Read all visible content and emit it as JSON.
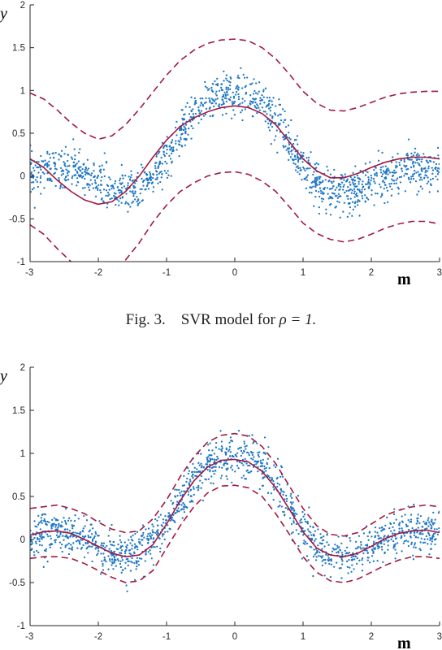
{
  "caption": {
    "prefix": "Fig. 3.",
    "text": "SVR model for",
    "math": "ρ = 1."
  },
  "colors": {
    "points": "#1f77c4",
    "model": "#a2193f",
    "axis": "#262626"
  },
  "chart_data": [
    {
      "type": "scatter",
      "ylabel": "y",
      "xlabel": "m",
      "xlim": [
        -3,
        3
      ],
      "ylim": [
        -1,
        2
      ],
      "xticks": [
        "-3",
        "-2",
        "-1",
        "0",
        "1",
        "2",
        "3"
      ],
      "yticks": [
        "-1",
        "-0.5",
        "0",
        "0.5",
        "1",
        "1.5",
        "2"
      ],
      "grid": false,
      "series": [
        {
          "kind": "points",
          "style": "dots",
          "x": [
            -3,
            -2.8,
            -2.6,
            -2.4,
            -2.2,
            -2,
            -1.8,
            -1.6,
            -1.4,
            -1.2,
            -1,
            -0.8,
            -0.6,
            -0.4,
            -0.2,
            0,
            0.2,
            0.4,
            0.6,
            0.8,
            1,
            1.2,
            1.4,
            1.6,
            1.8,
            2,
            2.2,
            2.4,
            2.6,
            2.8,
            3
          ],
          "y": [
            0.03,
            0.08,
            0.09,
            0.07,
            0.02,
            -0.07,
            -0.16,
            -0.2,
            -0.16,
            -0.02,
            0.2,
            0.46,
            0.7,
            0.87,
            0.95,
            0.97,
            0.95,
            0.85,
            0.65,
            0.4,
            0.12,
            -0.08,
            -0.18,
            -0.2,
            -0.16,
            -0.08,
            0,
            0.06,
            0.09,
            0.09,
            0.07
          ]
        },
        {
          "kind": "model",
          "style": "solid",
          "x": [
            -3,
            -2.8,
            -2.6,
            -2.4,
            -2.2,
            -2,
            -1.8,
            -1.6,
            -1.4,
            -1.2,
            -1,
            -0.8,
            -0.6,
            -0.4,
            -0.2,
            0,
            0.2,
            0.4,
            0.6,
            0.8,
            1,
            1.2,
            1.4,
            1.6,
            1.8,
            2,
            2.2,
            2.4,
            2.6,
            2.8,
            3
          ],
          "y": [
            0.2,
            0.1,
            -0.05,
            -0.18,
            -0.28,
            -0.33,
            -0.3,
            -0.18,
            0,
            0.22,
            0.42,
            0.58,
            0.68,
            0.75,
            0.8,
            0.82,
            0.8,
            0.73,
            0.6,
            0.4,
            0.2,
            0.06,
            -0.02,
            -0.02,
            0.03,
            0.1,
            0.16,
            0.2,
            0.22,
            0.22,
            0.2
          ]
        },
        {
          "kind": "upper-bound",
          "style": "dashed",
          "x": [
            -3,
            -2.8,
            -2.6,
            -2.4,
            -2.2,
            -2,
            -1.8,
            -1.6,
            -1.4,
            -1.2,
            -1,
            -0.8,
            -0.6,
            -0.4,
            -0.2,
            0,
            0.2,
            0.4,
            0.6,
            0.8,
            1,
            1.2,
            1.4,
            1.6,
            1.8,
            2,
            2.2,
            2.4,
            2.6,
            2.8,
            3
          ],
          "y": [
            0.97,
            0.9,
            0.77,
            0.62,
            0.5,
            0.43,
            0.47,
            0.6,
            0.78,
            0.98,
            1.18,
            1.35,
            1.47,
            1.55,
            1.59,
            1.6,
            1.58,
            1.5,
            1.37,
            1.19,
            0.99,
            0.85,
            0.77,
            0.76,
            0.8,
            0.86,
            0.92,
            0.96,
            0.98,
            0.99,
            0.99
          ]
        },
        {
          "kind": "lower-bound",
          "style": "dashed",
          "x": [
            -3,
            -2.8,
            -2.6,
            -2.4,
            -2.2,
            -2,
            -1.8,
            -1.6,
            -1.4,
            -1.2,
            -1,
            -0.8,
            -0.6,
            -0.4,
            -0.2,
            0,
            0.2,
            0.4,
            0.6,
            0.8,
            1,
            1.2,
            1.4,
            1.6,
            1.8,
            2,
            2.2,
            2.4,
            2.6,
            2.8,
            3
          ],
          "y": [
            -0.57,
            -0.68,
            -0.85,
            -1,
            -1.1,
            -1.14,
            -1.1,
            -0.98,
            -0.78,
            -0.54,
            -0.34,
            -0.18,
            -0.08,
            0,
            0.04,
            0.05,
            0.02,
            -0.06,
            -0.18,
            -0.36,
            -0.55,
            -0.67,
            -0.74,
            -0.77,
            -0.74,
            -0.68,
            -0.61,
            -0.56,
            -0.53,
            -0.53,
            -0.56
          ]
        }
      ]
    },
    {
      "type": "scatter",
      "ylabel": "y",
      "xlabel": "m",
      "xlim": [
        -3,
        3
      ],
      "ylim": [
        -1,
        2
      ],
      "xticks": [
        "-3",
        "-2",
        "-1",
        "0",
        "1",
        "2",
        "3"
      ],
      "yticks": [
        "-1",
        "-0.5",
        "0",
        "0.5",
        "1",
        "1.5",
        "2"
      ],
      "grid": false,
      "series": [
        {
          "kind": "points",
          "style": "dots",
          "x": [
            -3,
            -2.8,
            -2.6,
            -2.4,
            -2.2,
            -2,
            -1.8,
            -1.6,
            -1.4,
            -1.2,
            -1,
            -0.8,
            -0.6,
            -0.4,
            -0.2,
            0,
            0.2,
            0.4,
            0.6,
            0.8,
            1,
            1.2,
            1.4,
            1.6,
            1.8,
            2,
            2.2,
            2.4,
            2.6,
            2.8,
            3
          ],
          "y": [
            0.03,
            0.08,
            0.09,
            0.07,
            0.02,
            -0.07,
            -0.16,
            -0.2,
            -0.16,
            -0.02,
            0.2,
            0.46,
            0.7,
            0.87,
            0.95,
            0.97,
            0.95,
            0.85,
            0.65,
            0.4,
            0.12,
            -0.08,
            -0.18,
            -0.2,
            -0.16,
            -0.08,
            0,
            0.06,
            0.09,
            0.09,
            0.07
          ]
        },
        {
          "kind": "model",
          "style": "solid",
          "x": [
            -3,
            -2.8,
            -2.6,
            -2.4,
            -2.2,
            -2,
            -1.8,
            -1.6,
            -1.4,
            -1.2,
            -1,
            -0.8,
            -0.6,
            -0.4,
            -0.2,
            0,
            0.2,
            0.4,
            0.6,
            0.8,
            1,
            1.2,
            1.4,
            1.6,
            1.8,
            2,
            2.2,
            2.4,
            2.6,
            2.8,
            3
          ],
          "y": [
            0.05,
            0.09,
            0.1,
            0.07,
            0,
            -0.08,
            -0.16,
            -0.2,
            -0.18,
            -0.06,
            0.18,
            0.45,
            0.68,
            0.84,
            0.92,
            0.93,
            0.9,
            0.79,
            0.6,
            0.35,
            0.09,
            -0.1,
            -0.18,
            -0.2,
            -0.16,
            -0.08,
            0.01,
            0.07,
            0.1,
            0.11,
            0.08
          ]
        },
        {
          "kind": "upper-bound",
          "style": "dashed",
          "x": [
            -3,
            -2.8,
            -2.6,
            -2.4,
            -2.2,
            -2,
            -1.8,
            -1.6,
            -1.4,
            -1.2,
            -1,
            -0.8,
            -0.6,
            -0.4,
            -0.2,
            0,
            0.2,
            0.4,
            0.6,
            0.8,
            1,
            1.2,
            1.4,
            1.6,
            1.8,
            2,
            2.2,
            2.4,
            2.6,
            2.8,
            3
          ],
          "y": [
            0.36,
            0.38,
            0.4,
            0.36,
            0.3,
            0.2,
            0.12,
            0.08,
            0.1,
            0.24,
            0.46,
            0.73,
            0.96,
            1.13,
            1.21,
            1.23,
            1.2,
            1.08,
            0.88,
            0.62,
            0.36,
            0.16,
            0.06,
            0.04,
            0.08,
            0.18,
            0.28,
            0.34,
            0.38,
            0.4,
            0.38
          ]
        },
        {
          "kind": "lower-bound",
          "style": "dashed",
          "x": [
            -3,
            -2.8,
            -2.6,
            -2.4,
            -2.2,
            -2,
            -1.8,
            -1.6,
            -1.4,
            -1.2,
            -1,
            -0.8,
            -0.6,
            -0.4,
            -0.2,
            0,
            0.2,
            0.4,
            0.6,
            0.8,
            1,
            1.2,
            1.4,
            1.6,
            1.8,
            2,
            2.2,
            2.4,
            2.6,
            2.8,
            3
          ],
          "y": [
            -0.22,
            -0.2,
            -0.2,
            -0.22,
            -0.28,
            -0.36,
            -0.44,
            -0.5,
            -0.48,
            -0.36,
            -0.1,
            0.16,
            0.38,
            0.54,
            0.62,
            0.63,
            0.6,
            0.5,
            0.3,
            0.06,
            -0.2,
            -0.38,
            -0.48,
            -0.5,
            -0.46,
            -0.38,
            -0.3,
            -0.24,
            -0.2,
            -0.2,
            -0.22
          ]
        }
      ]
    }
  ]
}
